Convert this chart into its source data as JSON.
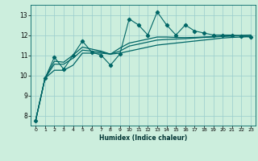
{
  "xlabel": "Humidex (Indice chaleur)",
  "bg_color": "#cceedd",
  "grid_color": "#99cccc",
  "line_color": "#006666",
  "xlim": [
    -0.5,
    23.5
  ],
  "ylim": [
    7.5,
    13.5
  ],
  "yticks": [
    8,
    9,
    10,
    11,
    12,
    13
  ],
  "xticks": [
    0,
    1,
    2,
    3,
    4,
    5,
    6,
    7,
    8,
    9,
    10,
    11,
    12,
    13,
    14,
    15,
    16,
    17,
    18,
    19,
    20,
    21,
    22,
    23
  ],
  "s1_x": [
    0,
    1,
    2,
    3,
    4,
    5,
    6,
    7,
    8,
    9,
    10,
    11,
    12,
    13,
    14,
    15,
    16,
    17,
    18,
    19,
    20,
    21,
    22,
    23
  ],
  "s1_y": [
    7.75,
    9.85,
    10.9,
    10.3,
    11.0,
    11.7,
    11.15,
    11.0,
    10.5,
    11.05,
    12.8,
    12.5,
    12.0,
    13.15,
    12.5,
    12.0,
    12.5,
    12.2,
    12.1,
    12.0,
    12.0,
    12.0,
    11.95,
    11.9
  ],
  "s2_x": [
    0,
    1,
    2,
    3,
    4,
    5,
    6,
    7,
    8,
    9,
    10,
    11,
    12,
    13,
    14,
    15,
    16,
    17,
    18,
    19,
    20,
    21,
    22,
    23
  ],
  "s2_y": [
    7.75,
    9.85,
    10.25,
    10.25,
    10.5,
    11.1,
    11.1,
    11.1,
    11.05,
    11.1,
    11.2,
    11.3,
    11.4,
    11.5,
    11.55,
    11.6,
    11.65,
    11.7,
    11.75,
    11.8,
    11.85,
    11.88,
    11.9,
    11.92
  ],
  "s3_x": [
    0,
    1,
    2,
    3,
    4,
    5,
    6,
    7,
    8,
    9,
    10,
    11,
    12,
    13,
    14,
    15,
    16,
    17,
    18,
    19,
    20,
    21,
    22,
    23
  ],
  "s3_y": [
    7.75,
    9.85,
    10.55,
    10.55,
    10.85,
    11.25,
    11.2,
    11.15,
    11.05,
    11.2,
    11.45,
    11.55,
    11.65,
    11.75,
    11.78,
    11.8,
    11.82,
    11.85,
    11.88,
    11.9,
    11.93,
    11.95,
    11.97,
    11.98
  ],
  "s4_x": [
    0,
    1,
    2,
    3,
    4,
    5,
    6,
    7,
    8,
    9,
    10,
    11,
    12,
    13,
    14,
    15,
    16,
    17,
    18,
    19,
    20,
    21,
    22,
    23
  ],
  "s4_y": [
    7.75,
    9.85,
    10.7,
    10.65,
    11.0,
    11.4,
    11.3,
    11.2,
    11.05,
    11.35,
    11.6,
    11.7,
    11.8,
    11.9,
    11.9,
    11.88,
    11.87,
    11.88,
    11.9,
    11.92,
    11.94,
    11.96,
    11.98,
    12.0
  ]
}
